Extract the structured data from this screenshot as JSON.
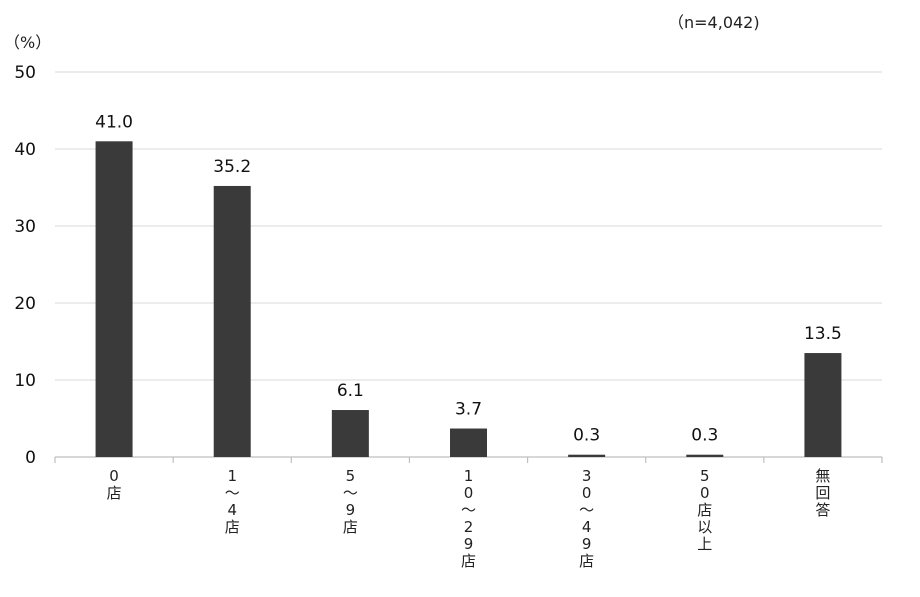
{
  "chart_data": {
    "type": "bar",
    "unit_label": "（%）",
    "note": "（n=4,042)",
    "categories": [
      "0店",
      "1～4店",
      "5～9店",
      "10～29店",
      "30～49店",
      "50店以上",
      "無回答"
    ],
    "values": [
      41.0,
      35.2,
      6.1,
      3.7,
      0.3,
      0.3,
      13.5
    ],
    "value_labels": [
      "41.0",
      "35.2",
      "6.1",
      "3.7",
      "0.3",
      "0.3",
      "13.5"
    ],
    "ylim": [
      0,
      50
    ],
    "yticks": [
      0,
      10,
      20,
      30,
      40,
      50
    ],
    "grid": true,
    "colors": {
      "bar": "#3a3a3a",
      "grid": "#d9d9d9",
      "axis": "#bfbfbf"
    }
  }
}
